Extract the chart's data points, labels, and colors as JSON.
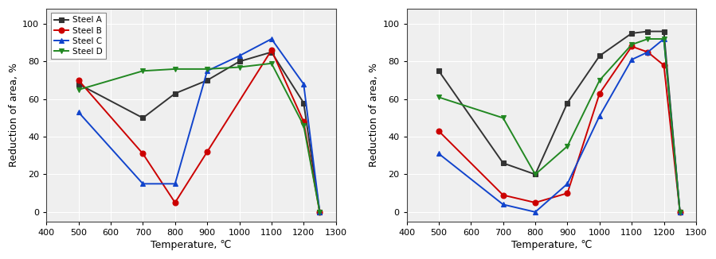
{
  "left": {
    "Steel_A": {
      "color": "#333333",
      "marker": "s",
      "x": [
        500,
        700,
        800,
        900,
        1000,
        1100,
        1200,
        1250
      ],
      "y": [
        68,
        50,
        63,
        70,
        80,
        85,
        58,
        0
      ]
    },
    "Steel_B": {
      "color": "#cc0000",
      "marker": "o",
      "x": [
        500,
        700,
        800,
        900,
        1100,
        1200,
        1250
      ],
      "y": [
        70,
        31,
        5,
        32,
        86,
        48,
        0
      ]
    },
    "Steel_C": {
      "color": "#1144cc",
      "marker": "^",
      "x": [
        500,
        700,
        800,
        900,
        1000,
        1100,
        1200,
        1250
      ],
      "y": [
        53,
        15,
        15,
        75,
        83,
        92,
        68,
        0
      ]
    },
    "Steel_D": {
      "color": "#228822",
      "marker": "v",
      "x": [
        500,
        700,
        800,
        900,
        1000,
        1100,
        1200,
        1250
      ],
      "y": [
        65,
        75,
        76,
        76,
        77,
        79,
        46,
        0
      ]
    }
  },
  "right": {
    "Steel_A": {
      "color": "#333333",
      "marker": "s",
      "x": [
        500,
        700,
        800,
        900,
        1000,
        1100,
        1150,
        1200,
        1250
      ],
      "y": [
        75,
        26,
        20,
        58,
        83,
        95,
        96,
        96,
        0
      ]
    },
    "Steel_B": {
      "color": "#cc0000",
      "marker": "o",
      "x": [
        500,
        700,
        800,
        900,
        1000,
        1100,
        1150,
        1200,
        1250
      ],
      "y": [
        43,
        9,
        5,
        10,
        63,
        88,
        85,
        78,
        0
      ]
    },
    "Steel_C": {
      "color": "#1144cc",
      "marker": "^",
      "x": [
        500,
        700,
        800,
        900,
        1000,
        1100,
        1150,
        1200,
        1250
      ],
      "y": [
        31,
        4,
        0,
        15,
        51,
        81,
        85,
        92,
        0
      ]
    },
    "Steel_D": {
      "color": "#228822",
      "marker": "v",
      "x": [
        500,
        700,
        800,
        900,
        1000,
        1100,
        1150,
        1200,
        1250
      ],
      "y": [
        61,
        50,
        20,
        35,
        70,
        89,
        92,
        92,
        0
      ]
    }
  },
  "legend_labels": [
    "Steel A",
    "Steel B",
    "Steel C",
    "Steel D"
  ],
  "xlabel": "Temperature, ℃",
  "ylabel": "Reduction of area, %",
  "xlim": [
    400,
    1300
  ],
  "ylim": [
    -5,
    108
  ],
  "xticks": [
    400,
    500,
    600,
    700,
    800,
    900,
    1000,
    1100,
    1200,
    1300
  ],
  "yticks": [
    0,
    20,
    40,
    60,
    80,
    100
  ],
  "background_color": "#ffffff",
  "plot_bg_color": "#efefef",
  "grid_color": "#ffffff",
  "linewidth": 1.4,
  "markersize": 5
}
